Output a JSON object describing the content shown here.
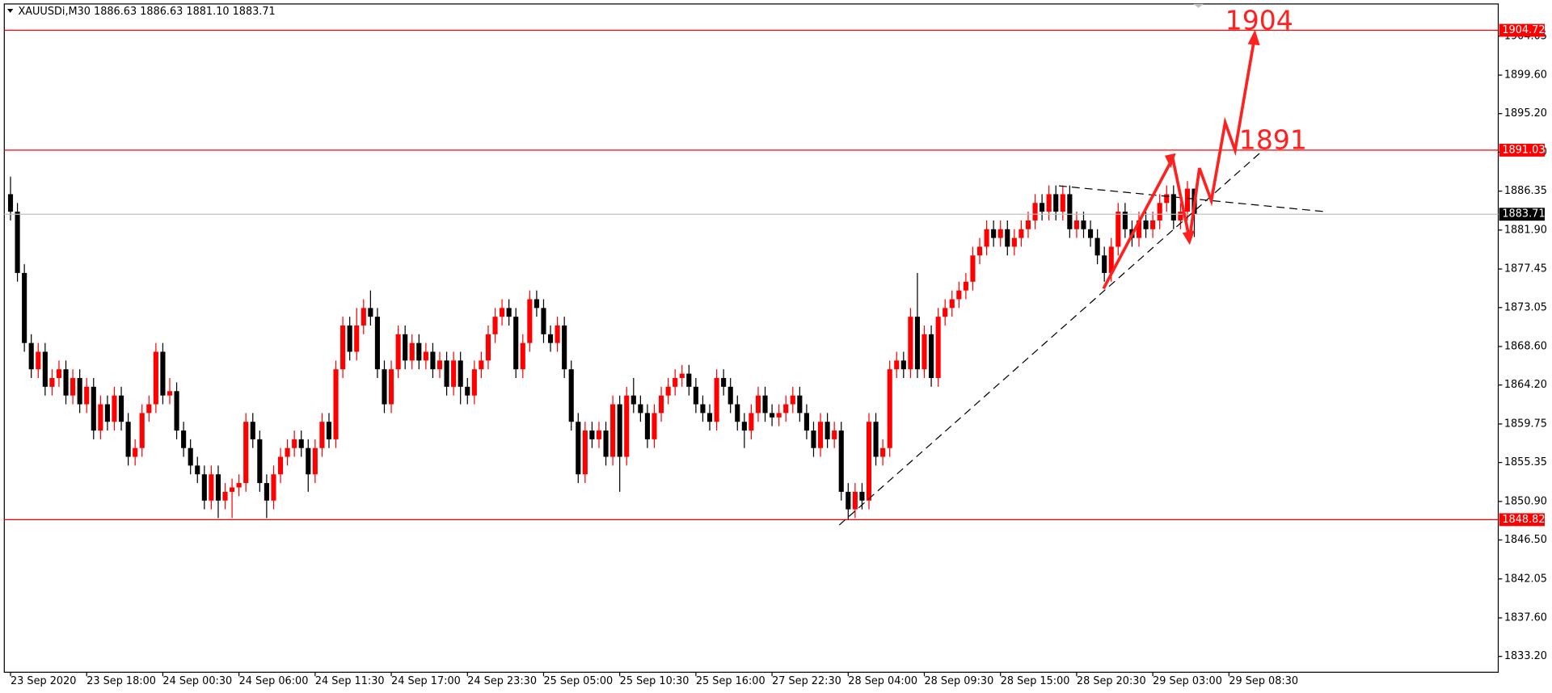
{
  "chart_data": {
    "type": "candlestick",
    "header": "XAUUSDi,M30  1886.63 1886.63 1881.10 1883.71",
    "up_color": "#ff0000",
    "down_color": "#000000",
    "xlim": [
      -0.9,
      214.9
    ],
    "xticks": [
      {
        "value": 0,
        "label": "23 Sep 2020"
      },
      {
        "value": 11,
        "label": "23 Sep 18:00"
      },
      {
        "value": 22,
        "label": "24 Sep 00:30"
      },
      {
        "value": 33,
        "label": "24 Sep 06:00"
      },
      {
        "value": 44,
        "label": "24 Sep 11:30"
      },
      {
        "value": 55,
        "label": "24 Sep 17:00"
      },
      {
        "value": 66,
        "label": "24 Sep 23:30"
      },
      {
        "value": 77,
        "label": "25 Sep 05:00"
      },
      {
        "value": 88,
        "label": "25 Sep 10:30"
      },
      {
        "value": 99,
        "label": "25 Sep 16:00"
      },
      {
        "value": 110,
        "label": "27 Sep 22:30"
      },
      {
        "value": 121,
        "label": "28 Sep 04:00"
      },
      {
        "value": 132,
        "label": "28 Sep 09:30"
      },
      {
        "value": 143,
        "label": "28 Sep 15:00"
      },
      {
        "value": 154,
        "label": "28 Sep 20:30"
      },
      {
        "value": 165,
        "label": "29 Sep 03:00"
      },
      {
        "value": 176,
        "label": "29 Sep 08:30"
      }
    ],
    "ylim": [
      1831.39,
      1907.73
    ],
    "yticks": [
      {
        "value": 1904.05,
        "label": "1904.05"
      },
      {
        "value": 1899.6,
        "label": "1899.60"
      },
      {
        "value": 1895.2,
        "label": "1895.20"
      },
      {
        "value": 1890.8,
        "label": "1890.80"
      },
      1886.35,
      {
        "value": 1881.9,
        "label": "1881.90"
      },
      1877.45,
      1873.05,
      {
        "value": 1868.6,
        "label": "1868.60"
      },
      {
        "value": 1864.2,
        "label": "1864.20"
      },
      1859.75,
      1855.35,
      {
        "value": 1850.9,
        "label": "1850.90"
      },
      {
        "value": 1846.5,
        "label": "1846.50"
      },
      1842.05,
      {
        "value": 1837.6,
        "label": "1837.60"
      },
      {
        "value": 1833.2,
        "label": "1833.20"
      }
    ],
    "open": [
      1886,
      1884,
      1877,
      1869,
      1866,
      1868,
      1864,
      1865,
      1866,
      1863,
      1865,
      1862,
      1864,
      1859,
      1862,
      1860,
      1863,
      1860,
      1856,
      1857,
      1861,
      1862,
      1868,
      1863,
      1863.5,
      1859,
      1857,
      1855,
      1854,
      1851,
      1854,
      1851,
      1852,
      1852.5,
      1853,
      1860,
      1858,
      1853,
      1851,
      1854,
      1856,
      1857,
      1858,
      1857,
      1854,
      1857,
      1860,
      1858,
      1866,
      1871,
      1868,
      1871,
      1873,
      1872,
      1866,
      1862,
      1866,
      1870,
      1867,
      1869,
      1867,
      1868,
      1866,
      1867,
      1864,
      1867,
      1864,
      1863,
      1866,
      1867,
      1870,
      1872,
      1873,
      1872,
      1866,
      1869,
      1874,
      1873,
      1870,
      1869,
      1871,
      1866,
      1860,
      1854,
      1859,
      1858,
      1859,
      1856,
      1862,
      1856,
      1863,
      1862,
      1861,
      1858,
      1861,
      1863,
      1864,
      1865,
      1865.5,
      1864,
      1862,
      1861,
      1860,
      1865,
      1864,
      1862,
      1860,
      1859,
      1861,
      1863,
      1861,
      1860.5,
      1861,
      1862,
      1863,
      1861,
      1859,
      1857,
      1860,
      1858,
      1859,
      1852,
      1850,
      1852,
      1851,
      1860,
      1856,
      1857,
      1866,
      1867,
      1866,
      1872,
      1866,
      1870,
      1865,
      1872,
      1873,
      1874,
      1875,
      1876,
      1879,
      1880,
      1882,
      1881,
      1882,
      1880,
      1881,
      1882,
      1883,
      1885,
      1884,
      1886,
      1884,
      1886,
      1882,
      1883,
      1882,
      1881,
      1879,
      1877,
      1880,
      1884,
      1882,
      1881,
      1883,
      1882,
      1883,
      1885,
      1886,
      1883,
      1884,
      1886.63
    ],
    "high": [
      1888,
      1885,
      1878,
      1870,
      1869,
      1869,
      1866,
      1867,
      1867,
      1866,
      1866,
      1865,
      1865,
      1863,
      1863,
      1864,
      1864,
      1861,
      1858,
      1862,
      1863,
      1869,
      1869,
      1865,
      1864.5,
      1860,
      1858,
      1856,
      1855,
      1855,
      1855,
      1853,
      1853.5,
      1854,
      1861,
      1861,
      1859,
      1854,
      1855,
      1857,
      1858,
      1859,
      1859,
      1858,
      1858,
      1861,
      1861,
      1867,
      1872,
      1872,
      1873,
      1874,
      1875,
      1873,
      1867,
      1867,
      1871,
      1871,
      1870,
      1870,
      1869,
      1869,
      1868,
      1868,
      1868,
      1868,
      1865,
      1867,
      1868,
      1871,
      1873,
      1874,
      1874,
      1873,
      1870,
      1875,
      1875,
      1874,
      1871,
      1872,
      1872,
      1867,
      1861,
      1860,
      1860,
      1860,
      1860,
      1863,
      1863,
      1864,
      1865,
      1863,
      1862,
      1862,
      1864,
      1865,
      1866,
      1866.5,
      1866.5,
      1865,
      1863,
      1862,
      1866,
      1866,
      1865,
      1863,
      1861,
      1862,
      1864,
      1864,
      1862,
      1862,
      1863,
      1864,
      1864,
      1862,
      1860,
      1861,
      1861,
      1860,
      1860,
      1853,
      1853,
      1853,
      1861,
      1861,
      1858,
      1867,
      1868,
      1868,
      1873,
      1877,
      1871,
      1871,
      1873,
      1874,
      1875,
      1876,
      1877,
      1880,
      1881,
      1883,
      1883,
      1883,
      1883,
      1882,
      1883,
      1884,
      1886,
      1886,
      1887,
      1887,
      1887,
      1887,
      1884,
      1884,
      1883,
      1882,
      1880,
      1881,
      1885,
      1885,
      1883,
      1884,
      1884,
      1884,
      1886,
      1887,
      1887,
      1885,
      1887.5,
      1886.63
    ],
    "low": [
      1883,
      1876,
      1868,
      1865,
      1865,
      1863,
      1863,
      1864,
      1862,
      1862,
      1861,
      1861,
      1858,
      1858,
      1859,
      1859,
      1859,
      1855,
      1855,
      1856,
      1860,
      1861,
      1862,
      1862,
      1858,
      1856,
      1854,
      1853,
      1850,
      1850,
      1849,
      1850,
      1849,
      1851.5,
      1852,
      1857,
      1852,
      1849,
      1850,
      1853,
      1855,
      1856,
      1856,
      1852,
      1853,
      1856,
      1857,
      1857,
      1865,
      1867,
      1867,
      1870,
      1871,
      1865,
      1861,
      1861,
      1865,
      1866,
      1866,
      1866,
      1866,
      1865,
      1865,
      1863,
      1863,
      1862,
      1862,
      1862,
      1865,
      1866,
      1869,
      1871,
      1871,
      1865,
      1865,
      1868,
      1872,
      1869,
      1868,
      1868,
      1865,
      1859,
      1853,
      1853,
      1857,
      1857,
      1855,
      1855,
      1852,
      1855,
      1861,
      1860,
      1857,
      1857,
      1860,
      1862,
      1863,
      1864,
      1863,
      1861,
      1860,
      1859,
      1859,
      1863,
      1861,
      1859,
      1857,
      1858,
      1860,
      1860,
      1859.5,
      1859.5,
      1860,
      1861,
      1860,
      1858,
      1856,
      1856,
      1857,
      1857,
      1851,
      1848.82,
      1849,
      1850,
      1850,
      1855,
      1855,
      1856,
      1865,
      1865,
      1865,
      1865,
      1865,
      1864,
      1864,
      1871,
      1872,
      1873,
      1874,
      1875,
      1878,
      1879,
      1880,
      1880,
      1879,
      1879,
      1880,
      1881,
      1882,
      1883,
      1883,
      1883,
      1883,
      1881,
      1881,
      1881,
      1880,
      1878,
      1876,
      1876,
      1879,
      1881,
      1880,
      1880,
      1881,
      1881,
      1882,
      1884,
      1882,
      1882,
      1883,
      1881.1
    ],
    "close": [
      1884,
      1877,
      1869,
      1866,
      1868,
      1864,
      1865,
      1866,
      1863,
      1865,
      1862,
      1864,
      1859,
      1862,
      1860,
      1863,
      1860,
      1856,
      1857,
      1861,
      1862,
      1868,
      1863,
      1863.5,
      1859,
      1857,
      1855,
      1854,
      1851,
      1854,
      1851,
      1852,
      1852.5,
      1853,
      1860,
      1858,
      1853,
      1851,
      1854,
      1856,
      1857,
      1858,
      1857,
      1854,
      1857,
      1860,
      1858,
      1866,
      1871,
      1868,
      1871,
      1873,
      1872,
      1866,
      1862,
      1866,
      1870,
      1867,
      1869,
      1867,
      1868,
      1866,
      1867,
      1864,
      1867,
      1864,
      1863,
      1866,
      1867,
      1870,
      1872,
      1873,
      1872,
      1866,
      1869,
      1874,
      1873,
      1870,
      1869,
      1871,
      1866,
      1860,
      1854,
      1859,
      1858,
      1859,
      1856,
      1862,
      1856,
      1863,
      1862,
      1861,
      1858,
      1861,
      1863,
      1864,
      1865,
      1865.5,
      1864,
      1862,
      1861,
      1860,
      1865,
      1864,
      1862,
      1860,
      1859,
      1861,
      1863,
      1861,
      1860.5,
      1861,
      1862,
      1863,
      1861,
      1859,
      1857,
      1860,
      1858,
      1859,
      1852,
      1850,
      1852,
      1851,
      1860,
      1856,
      1857,
      1866,
      1867,
      1866,
      1872,
      1866,
      1870,
      1865,
      1872,
      1873,
      1874,
      1875,
      1876,
      1879,
      1880,
      1882,
      1881,
      1882,
      1880,
      1881,
      1882,
      1883,
      1885,
      1884,
      1886,
      1884,
      1886,
      1882,
      1883,
      1882,
      1881,
      1879,
      1877,
      1880,
      1884,
      1882,
      1881,
      1883,
      1882,
      1883,
      1885,
      1886,
      1883,
      1884,
      1886.63,
      1883.71
    ],
    "hlines": [
      {
        "value": 1904.72,
        "color": "#ff0000"
      },
      {
        "value": 1891.03,
        "color": "#ff0000"
      },
      {
        "value": 1848.82,
        "color": "#ff0000"
      },
      {
        "value": 1883.71,
        "color": "#c0c0c0",
        "label_color": "#000000"
      }
    ],
    "annotations": [
      "1904",
      "1891"
    ]
  }
}
